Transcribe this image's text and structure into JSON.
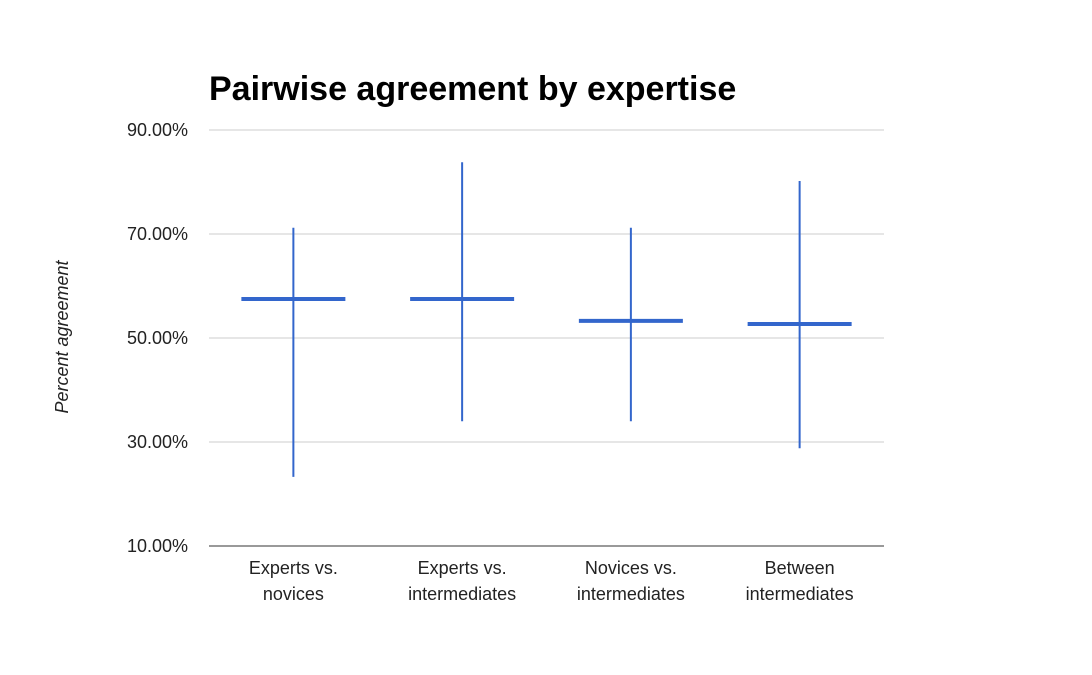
{
  "chart_data": {
    "type": "candlestick",
    "title": "Pairwise agreement by expertise",
    "ylabel": "Percent agreement",
    "xlabel": "",
    "ylim": [
      10,
      90
    ],
    "y_ticks": [
      10,
      30,
      50,
      70,
      90
    ],
    "y_tick_labels": [
      "10.00%",
      "30.00%",
      "50.00%",
      "70.00%",
      "90.00%"
    ],
    "grid": true,
    "legend": "none",
    "series_color": "#3366cc",
    "categories": [
      [
        "Experts vs.",
        "novices"
      ],
      [
        "Experts vs.",
        "intermediates"
      ],
      [
        "Novices vs.",
        "intermediates"
      ],
      [
        "Between",
        "intermediates"
      ]
    ],
    "points": [
      {
        "low": 23.3,
        "center": 57.5,
        "high": 71.2
      },
      {
        "low": 34.0,
        "center": 57.5,
        "high": 83.8
      },
      {
        "low": 34.0,
        "center": 53.3,
        "high": 71.2
      },
      {
        "low": 28.8,
        "center": 52.7,
        "high": 80.2
      }
    ]
  }
}
